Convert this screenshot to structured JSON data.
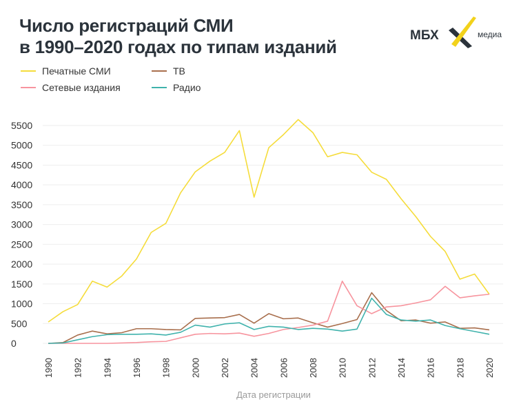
{
  "title": {
    "line1": "Число регистраций СМИ",
    "line2": "в 1990–2020 годах по типам изданий"
  },
  "logo": {
    "text": "МБХ",
    "sub": "медиа",
    "accent": "#f2d21b"
  },
  "chart_data": {
    "type": "line",
    "title": "Число регистраций СМИ в 1990–2020 годах по типам изданий",
    "xlabel": "Дата регистрации",
    "ylabel": "",
    "ylim": [
      0,
      5500
    ],
    "xlim": [
      1990,
      2020
    ],
    "yticks": [
      0,
      500,
      1000,
      1500,
      2000,
      2500,
      3000,
      3500,
      4000,
      4500,
      5000,
      5500
    ],
    "xticks": [
      1990,
      1992,
      1994,
      1996,
      1998,
      2000,
      2002,
      2004,
      2006,
      2008,
      2010,
      2012,
      2014,
      2016,
      2018,
      2020
    ],
    "grid": "horizontal",
    "legend": "top-left",
    "x": [
      1990,
      1991,
      1992,
      1993,
      1994,
      1995,
      1996,
      1997,
      1998,
      1999,
      2000,
      2001,
      2002,
      2003,
      2004,
      2005,
      2006,
      2007,
      2008,
      2009,
      2010,
      2011,
      2012,
      2013,
      2014,
      2015,
      2016,
      2017,
      2018,
      2019,
      2020
    ],
    "series": [
      {
        "name": "Печатные СМИ",
        "color": "#f5dc3a",
        "values": [
          540,
          800,
          980,
          1570,
          1420,
          1700,
          2130,
          2800,
          3030,
          3800,
          4330,
          4600,
          4820,
          5370,
          3690,
          4940,
          5270,
          5650,
          5320,
          4710,
          4820,
          4760,
          4320,
          4140,
          3650,
          3200,
          2700,
          2320,
          1620,
          1750,
          1240
        ]
      },
      {
        "name": "Сетевые издания",
        "color": "#f7949e",
        "values": [
          0,
          0,
          0,
          0,
          0,
          10,
          20,
          40,
          50,
          140,
          230,
          250,
          240,
          260,
          180,
          250,
          350,
          400,
          460,
          560,
          1570,
          950,
          750,
          920,
          950,
          1020,
          1100,
          1440,
          1150,
          1200,
          1240
        ]
      },
      {
        "name": "ТВ",
        "color": "#a86e4c",
        "values": [
          0,
          20,
          210,
          310,
          240,
          270,
          370,
          370,
          350,
          340,
          630,
          640,
          650,
          730,
          510,
          750,
          620,
          640,
          520,
          410,
          500,
          600,
          1280,
          830,
          570,
          590,
          510,
          540,
          380,
          390,
          340
        ]
      },
      {
        "name": "Радио",
        "color": "#3fb2ac",
        "values": [
          0,
          10,
          90,
          170,
          220,
          230,
          230,
          240,
          210,
          280,
          460,
          410,
          490,
          520,
          350,
          430,
          410,
          350,
          380,
          360,
          310,
          360,
          1140,
          730,
          590,
          560,
          590,
          450,
          370,
          300,
          230
        ]
      }
    ]
  }
}
